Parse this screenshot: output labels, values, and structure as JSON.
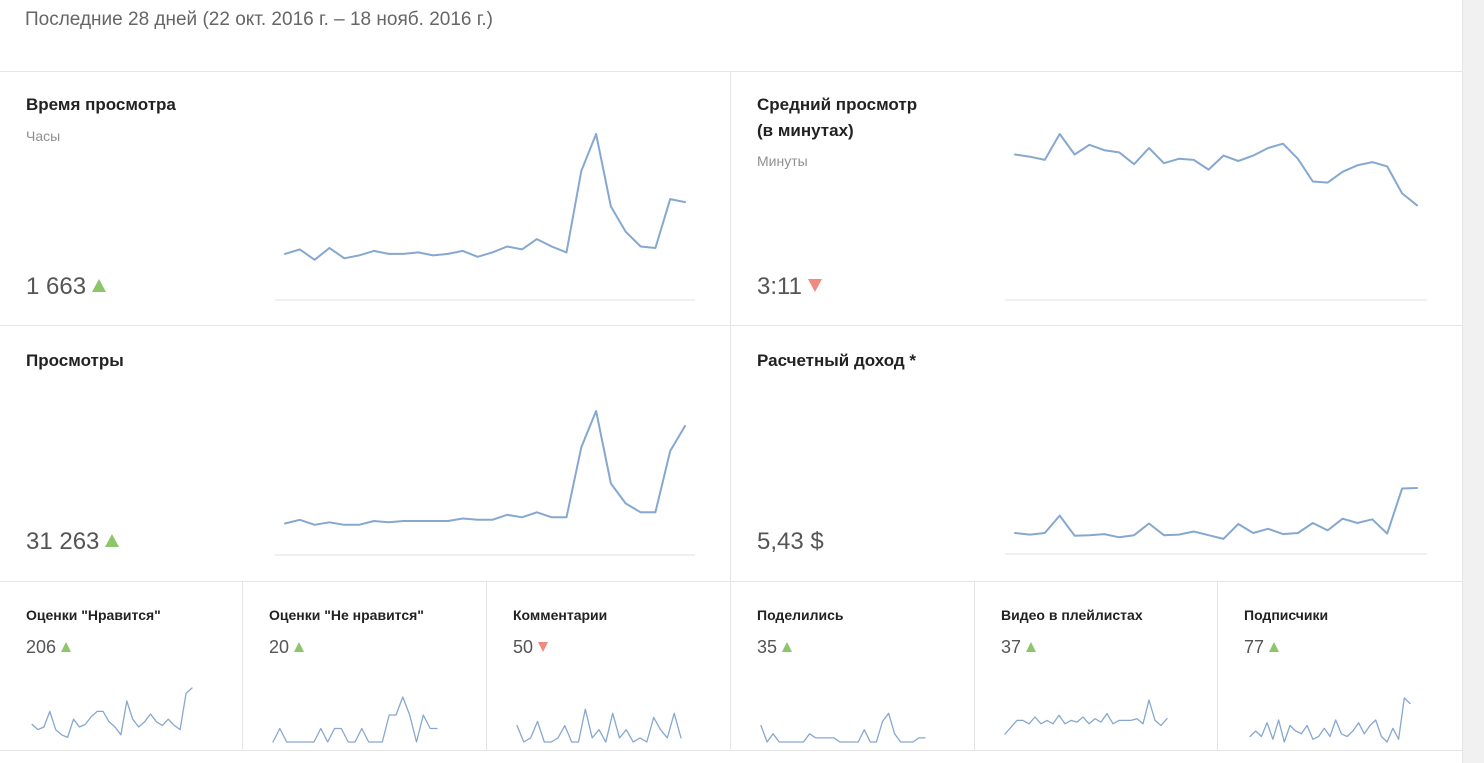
{
  "period_label": "Последние 28 дней (22 окт. 2016 г. – 18 нояб. 2016 г.)",
  "colors": {
    "line": "#86a8d0",
    "up": "#8cc56a",
    "down": "#ee8a80",
    "axis": "#e0e0e0"
  },
  "big_cards": [
    {
      "id": "watch-time",
      "title": "Время просмотра",
      "title_line2": "",
      "unit": "Часы",
      "value": "1 663",
      "trend": "up",
      "chart_data": {
        "type": "line",
        "ylim": [
          0,
          100
        ],
        "values": [
          19,
          22,
          15,
          23,
          16,
          18,
          21,
          19,
          19,
          20,
          18,
          19,
          21,
          17,
          20,
          24,
          22,
          29,
          24,
          20,
          75,
          100,
          51,
          34,
          24,
          23,
          56,
          54
        ]
      }
    },
    {
      "id": "avg-view",
      "title": "Средний просмотр",
      "title_line2": "(в минутах)",
      "unit": "Минуты",
      "value": "3:11",
      "trend": "down",
      "chart_data": {
        "type": "line",
        "ylim": [
          0,
          100
        ],
        "values": [
          81,
          79,
          76,
          100,
          81,
          90,
          85,
          83,
          72,
          87,
          73,
          77,
          76,
          67,
          80,
          75,
          80,
          87,
          91,
          77,
          56,
          55,
          65,
          71,
          74,
          70,
          45,
          34
        ]
      }
    },
    {
      "id": "views",
      "title": "Просмотры",
      "title_line2": "",
      "unit": "",
      "value": "31 263",
      "trend": "up",
      "chart_data": {
        "type": "line",
        "ylim": [
          0,
          100
        ],
        "values": [
          10,
          13,
          9,
          11,
          9,
          9,
          12,
          11,
          12,
          12,
          12,
          12,
          14,
          13,
          13,
          17,
          15,
          19,
          15,
          15,
          71,
          100,
          42,
          26,
          19,
          19,
          68,
          88
        ]
      }
    },
    {
      "id": "revenue",
      "title": "Расчетный доход *",
      "title_line2": "",
      "unit": "",
      "value": "5,43 $",
      "trend": "",
      "chart_data": {
        "type": "line",
        "ylim": [
          0,
          100
        ],
        "values": [
          15,
          12,
          15,
          48,
          10,
          11,
          13,
          7,
          11,
          33,
          11,
          12,
          18,
          11,
          4,
          32,
          15,
          23,
          13,
          15,
          34,
          20,
          42,
          34,
          41,
          14,
          99,
          100
        ]
      }
    }
  ],
  "small_cards": [
    {
      "id": "likes",
      "title": "Оценки \"Нравится\"",
      "value": "206",
      "trend": "up",
      "chart_data": {
        "type": "line",
        "ylim": [
          0,
          100
        ],
        "values": [
          30,
          20,
          25,
          55,
          20,
          10,
          5,
          40,
          25,
          30,
          45,
          55,
          55,
          35,
          25,
          10,
          75,
          40,
          25,
          35,
          50,
          35,
          28,
          40,
          28,
          20,
          90,
          100
        ]
      }
    },
    {
      "id": "dislikes",
      "title": "Оценки \"Не нравится\"",
      "value": "20",
      "trend": "up",
      "chart_data": {
        "type": "line",
        "ylim": [
          0,
          100
        ],
        "values": [
          0,
          30,
          0,
          0,
          0,
          0,
          0,
          30,
          0,
          30,
          30,
          0,
          0,
          30,
          0,
          0,
          0,
          60,
          60,
          100,
          60,
          0,
          60,
          30,
          30
        ]
      }
    },
    {
      "id": "comments",
      "title": "Комментарии",
      "value": "50",
      "trend": "down",
      "chart_data": {
        "type": "line",
        "ylim": [
          0,
          100
        ],
        "values": [
          40,
          0,
          10,
          50,
          0,
          0,
          10,
          40,
          0,
          0,
          80,
          10,
          30,
          0,
          70,
          10,
          30,
          0,
          10,
          0,
          60,
          30,
          10,
          70,
          10
        ]
      }
    },
    {
      "id": "shares",
      "title": "Поделились",
      "value": "35",
      "trend": "up",
      "chart_data": {
        "type": "line",
        "ylim": [
          0,
          100
        ],
        "values": [
          40,
          0,
          20,
          0,
          0,
          0,
          0,
          0,
          20,
          10,
          10,
          10,
          10,
          0,
          0,
          0,
          0,
          30,
          0,
          0,
          50,
          70,
          20,
          0,
          0,
          0,
          10,
          10
        ]
      }
    },
    {
      "id": "playlists",
      "title": "Видео в плейлистах",
      "value": "37",
      "trend": "up",
      "chart_data": {
        "type": "line",
        "ylim": [
          0,
          100
        ],
        "values": [
          0,
          20,
          40,
          40,
          30,
          50,
          30,
          40,
          30,
          55,
          30,
          40,
          35,
          50,
          30,
          45,
          35,
          60,
          30,
          40,
          40,
          40,
          45,
          30,
          100,
          40,
          25,
          45
        ]
      }
    },
    {
      "id": "subscribers",
      "title": "Подписчики",
      "value": "77",
      "trend": "up",
      "chart_data": {
        "type": "line",
        "ylim": [
          0,
          100
        ],
        "values": [
          10,
          20,
          10,
          35,
          5,
          40,
          0,
          30,
          20,
          15,
          30,
          5,
          10,
          25,
          10,
          40,
          15,
          10,
          20,
          35,
          15,
          30,
          40,
          10,
          0,
          25,
          5,
          80,
          70
        ]
      }
    }
  ]
}
